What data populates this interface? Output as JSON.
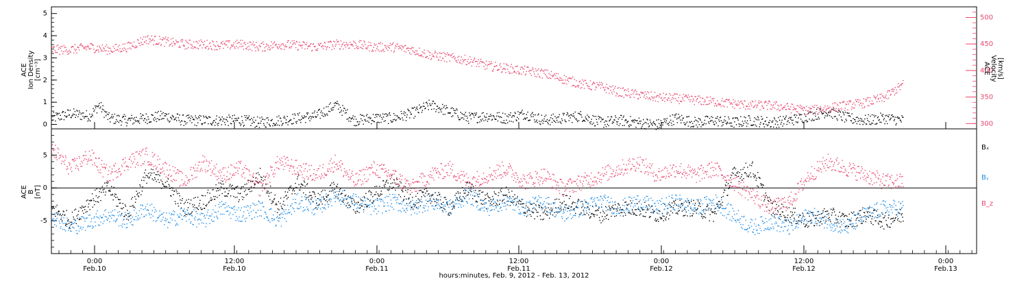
{
  "chart_data": [
    {
      "type": "scatter",
      "panel": "top",
      "ylabel_left": [
        "ACE",
        "Ion Density",
        "[cm⁻³]"
      ],
      "ylabel_right": [
        "ACE",
        "Velocity",
        "[km/s]"
      ],
      "ylim_left": [
        -0.2,
        5.3
      ],
      "ylim_right": [
        290,
        520
      ],
      "yticks_left": [
        0,
        1,
        2,
        3,
        4,
        5
      ],
      "yticks_right": [
        300,
        350,
        400,
        450,
        500
      ],
      "series": [
        {
          "axis": "left",
          "color": "#000000",
          "x": [
            0,
            0.1,
            0.2,
            0.25,
            0.3,
            0.4,
            0.5,
            0.6,
            0.7,
            0.8,
            0.9,
            1.0,
            1.1,
            1.2,
            1.3,
            1.4,
            1.5,
            1.6,
            1.7,
            1.8,
            1.9,
            2.0,
            2.1,
            2.2,
            2.3,
            2.4,
            2.5,
            2.6,
            2.7,
            2.8,
            2.9,
            3.0,
            3.1,
            3.2,
            3.3,
            3.4,
            3.5,
            3.6,
            3.7,
            3.8,
            3.9,
            4.0,
            4.1,
            4.2,
            4.3,
            4.4,
            4.5
          ],
          "y": [
            0.3,
            0.5,
            0.4,
            0.9,
            0.3,
            0.2,
            0.3,
            0.4,
            0.2,
            0.2,
            0.2,
            0.2,
            0.1,
            0.2,
            0.3,
            0.4,
            0.9,
            0.2,
            0.3,
            0.3,
            0.5,
            0.9,
            0.6,
            0.3,
            0.4,
            0.3,
            0.5,
            0.2,
            0.3,
            0.4,
            0.1,
            0.2,
            0.1,
            0.0,
            0.3,
            0.1,
            0.2,
            0.1,
            0.2,
            0.1,
            0.2,
            0.4,
            0.6,
            0.3,
            0.2,
            0.3,
            0.2
          ]
        },
        {
          "axis": "right",
          "color": "#e8466e",
          "x": [
            0,
            0.1,
            0.2,
            0.3,
            0.4,
            0.5,
            0.6,
            0.7,
            0.8,
            0.9,
            1.0,
            1.1,
            1.2,
            1.3,
            1.4,
            1.5,
            1.6,
            1.7,
            1.8,
            1.9,
            2.0,
            2.1,
            2.2,
            2.3,
            2.4,
            2.5,
            2.6,
            2.7,
            2.8,
            2.9,
            3.0,
            3.1,
            3.2,
            3.3,
            3.4,
            3.5,
            3.6,
            3.7,
            3.8,
            3.9,
            4.0,
            4.1,
            4.2,
            4.3,
            4.4,
            4.5
          ],
          "y": [
            440,
            440,
            445,
            440,
            445,
            460,
            455,
            450,
            450,
            448,
            450,
            445,
            450,
            448,
            445,
            450,
            450,
            445,
            445,
            440,
            430,
            425,
            420,
            410,
            405,
            400,
            395,
            385,
            375,
            370,
            360,
            355,
            350,
            348,
            345,
            342,
            338,
            335,
            335,
            330,
            325,
            330,
            335,
            340,
            350,
            375
          ]
        }
      ]
    },
    {
      "type": "scatter",
      "panel": "bottom",
      "ylabel": [
        "ACE",
        "B",
        "[nT]"
      ],
      "ylim": [
        -10,
        9
      ],
      "yticks": [
        -5,
        0,
        5
      ],
      "legend": [
        "Bₓ",
        "Bᵧ",
        "B_z"
      ],
      "legend_placement": "right",
      "series": [
        {
          "name": "Bₓ",
          "color": "#000000",
          "x": [
            0,
            0.1,
            0.2,
            0.3,
            0.4,
            0.5,
            0.6,
            0.7,
            0.8,
            0.9,
            1.0,
            1.1,
            1.2,
            1.3,
            1.4,
            1.5,
            1.6,
            1.7,
            1.8,
            1.9,
            2.0,
            2.1,
            2.2,
            2.3,
            2.4,
            2.5,
            2.6,
            2.7,
            2.8,
            2.9,
            3.0,
            3.1,
            3.2,
            3.3,
            3.4,
            3.5,
            3.6,
            3.7,
            3.8,
            3.9,
            4.0,
            4.1,
            4.2,
            4.3,
            4.4,
            4.5
          ],
          "y": [
            -3,
            -5,
            -2,
            0,
            -4,
            2,
            1,
            -3,
            -2,
            0,
            -1,
            2,
            -3,
            1,
            -2,
            0,
            -3,
            -1,
            1,
            -2,
            -1,
            -3,
            0,
            -2,
            -1,
            -3,
            -4,
            -2,
            -3,
            -4,
            -3,
            -3,
            -4,
            -3,
            -3,
            -4,
            2,
            3,
            -3,
            -4,
            -5,
            -4,
            -5,
            -4,
            -5,
            -4
          ]
        },
        {
          "name": "Bᵧ",
          "color": "#1e8ce6",
          "x": [
            0,
            0.1,
            0.2,
            0.3,
            0.4,
            0.5,
            0.6,
            0.7,
            0.8,
            0.9,
            1.0,
            1.1,
            1.2,
            1.3,
            1.4,
            1.5,
            1.6,
            1.7,
            1.8,
            1.9,
            2.0,
            2.1,
            2.2,
            2.3,
            2.4,
            2.5,
            2.6,
            2.7,
            2.8,
            2.9,
            3.0,
            3.1,
            3.2,
            3.3,
            3.4,
            3.5,
            3.6,
            3.7,
            3.8,
            3.9,
            4.0,
            4.1,
            4.2,
            4.3,
            4.4,
            4.5
          ],
          "y": [
            -4,
            -6,
            -5,
            -4,
            -5,
            -3,
            -5,
            -4,
            -5,
            -3,
            -4,
            -3,
            -5,
            -2,
            -3,
            -1,
            -2,
            -3,
            -2,
            -3,
            -2,
            -3,
            -1,
            -3,
            -2,
            -3,
            -2,
            -4,
            -3,
            -2,
            -3,
            -2,
            -3,
            -2,
            -3,
            -2,
            -4,
            -6,
            -5,
            -6,
            -4,
            -5,
            -6,
            -4,
            -3,
            -3
          ]
        },
        {
          "name": "B_z",
          "color": "#e8466e",
          "x": [
            0,
            0.1,
            0.2,
            0.3,
            0.4,
            0.5,
            0.6,
            0.7,
            0.8,
            0.9,
            1.0,
            1.1,
            1.2,
            1.3,
            1.4,
            1.5,
            1.6,
            1.7,
            1.8,
            1.9,
            2.0,
            2.1,
            2.2,
            2.3,
            2.4,
            2.5,
            2.6,
            2.7,
            2.8,
            2.9,
            3.0,
            3.1,
            3.2,
            3.3,
            3.4,
            3.5,
            3.6,
            3.7,
            3.8,
            3.9,
            4.0,
            4.1,
            4.2,
            4.3,
            4.4,
            4.5
          ],
          "y": [
            6,
            3,
            5,
            2,
            4,
            5,
            3,
            1,
            4,
            2,
            3,
            0,
            4,
            3,
            2,
            4,
            1,
            3,
            2,
            0,
            2,
            3,
            1,
            2,
            3,
            1,
            2,
            0,
            1,
            2,
            3,
            4,
            2,
            3,
            2,
            3,
            1,
            -1,
            -3,
            -2,
            2,
            4,
            3,
            2,
            1,
            1
          ]
        }
      ]
    }
  ],
  "x_axis": {
    "ticks": [
      {
        "time": "0:00",
        "date": "Feb.10"
      },
      {
        "time": "12:00",
        "date": "Feb.10"
      },
      {
        "time": "0:00",
        "date": "Feb.11"
      },
      {
        "time": "12:00",
        "date": "Feb.11"
      },
      {
        "time": "0:00",
        "date": "Feb.12"
      },
      {
        "time": "12:00",
        "date": "Feb.12"
      },
      {
        "time": "0:00",
        "date": "Feb.13"
      }
    ],
    "title": "hours:minutes, Feb.  9, 2012 - Feb. 13, 2012"
  }
}
